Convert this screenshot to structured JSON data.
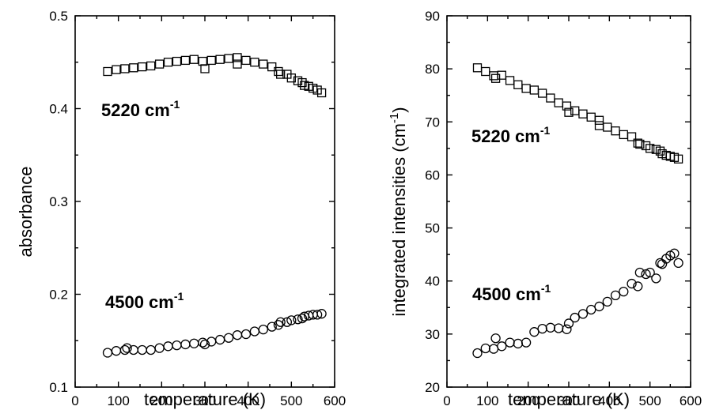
{
  "chart_data": [
    {
      "type": "scatter",
      "xlabel": "temperature (K)",
      "ylabel": "absorbance",
      "xlim": [
        0,
        600
      ],
      "ylim": [
        0.1,
        0.5
      ],
      "xticks": [
        "0",
        "100",
        "200",
        "300",
        "400",
        "500",
        "600"
      ],
      "yticks": [
        "0.1",
        "0.2",
        "0.3",
        "0.4",
        "0.5"
      ],
      "series": [
        {
          "name": "5220 cm-1",
          "label_main": "5220 cm",
          "label_sup": "-1",
          "marker": "square",
          "x": [
            75,
            95,
            115,
            135,
            155,
            175,
            195,
            215,
            235,
            255,
            275,
            295,
            300,
            315,
            335,
            355,
            375,
            375,
            395,
            415,
            435,
            455,
            470,
            475,
            490,
            500,
            515,
            525,
            530,
            540,
            550,
            560,
            570
          ],
          "y": [
            0.44,
            0.442,
            0.443,
            0.444,
            0.445,
            0.446,
            0.448,
            0.45,
            0.451,
            0.452,
            0.453,
            0.451,
            0.443,
            0.452,
            0.453,
            0.454,
            0.455,
            0.448,
            0.452,
            0.45,
            0.448,
            0.445,
            0.44,
            0.437,
            0.437,
            0.433,
            0.43,
            0.428,
            0.425,
            0.424,
            0.422,
            0.42,
            0.417
          ]
        },
        {
          "name": "4500 cm-1",
          "label_main": "4500 cm",
          "label_sup": "-1",
          "marker": "circle",
          "x": [
            75,
            95,
            115,
            120,
            135,
            155,
            175,
            195,
            215,
            235,
            255,
            275,
            295,
            300,
            315,
            335,
            355,
            375,
            395,
            415,
            435,
            455,
            470,
            475,
            490,
            500,
            515,
            525,
            530,
            540,
            550,
            560,
            570
          ],
          "y": [
            0.137,
            0.139,
            0.14,
            0.142,
            0.14,
            0.14,
            0.14,
            0.142,
            0.144,
            0.145,
            0.146,
            0.147,
            0.148,
            0.146,
            0.149,
            0.151,
            0.153,
            0.156,
            0.157,
            0.16,
            0.162,
            0.165,
            0.167,
            0.17,
            0.17,
            0.172,
            0.173,
            0.174,
            0.176,
            0.177,
            0.178,
            0.178,
            0.179
          ]
        }
      ]
    },
    {
      "type": "scatter",
      "xlabel": "temperature (K)",
      "ylabel": "integrated intensities (cm",
      "ylabel_sup": "-1",
      "ylabel_end": ")",
      "xlim": [
        0,
        600
      ],
      "ylim": [
        20,
        90
      ],
      "xticks": [
        "0",
        "100",
        "200",
        "300",
        "400",
        "500",
        "600"
      ],
      "yticks": [
        "20",
        "30",
        "40",
        "50",
        "60",
        "70",
        "80",
        "90"
      ],
      "series": [
        {
          "name": "5220 cm-1",
          "label_main": "5220 cm",
          "label_sup": "-1",
          "marker": "square",
          "x": [
            75,
            95,
            115,
            120,
            135,
            155,
            175,
            195,
            215,
            235,
            255,
            275,
            295,
            300,
            315,
            335,
            355,
            375,
            375,
            395,
            415,
            435,
            455,
            470,
            475,
            490,
            500,
            515,
            525,
            530,
            540,
            550,
            560,
            570
          ],
          "y": [
            80.2,
            79.5,
            78.7,
            78.2,
            78.8,
            77.8,
            77.0,
            76.3,
            76.0,
            75.4,
            74.5,
            73.6,
            73.0,
            71.8,
            72.1,
            71.5,
            70.9,
            70.3,
            69.3,
            69.0,
            68.3,
            67.6,
            67.2,
            66.0,
            65.8,
            65.5,
            65.0,
            64.8,
            64.5,
            64.0,
            63.7,
            63.5,
            63.3,
            63.0
          ]
        },
        {
          "name": "4500 cm-1",
          "label_main": "4500 cm",
          "label_sup": "-1",
          "marker": "circle",
          "x": [
            75,
            95,
            115,
            120,
            135,
            155,
            175,
            195,
            215,
            235,
            255,
            275,
            295,
            300,
            315,
            335,
            355,
            375,
            395,
            415,
            435,
            455,
            470,
            475,
            490,
            500,
            515,
            525,
            530,
            540,
            550,
            560,
            570
          ],
          "y": [
            26.4,
            27.3,
            27.2,
            29.2,
            27.7,
            28.4,
            28.2,
            28.4,
            30.4,
            31.0,
            31.2,
            31.1,
            30.9,
            32.0,
            33.1,
            33.8,
            34.6,
            35.2,
            36.1,
            37.3,
            38.0,
            39.5,
            39.0,
            41.6,
            41.3,
            41.6,
            40.5,
            43.4,
            43.2,
            44.2,
            44.8,
            45.2,
            43.4
          ]
        }
      ]
    }
  ]
}
